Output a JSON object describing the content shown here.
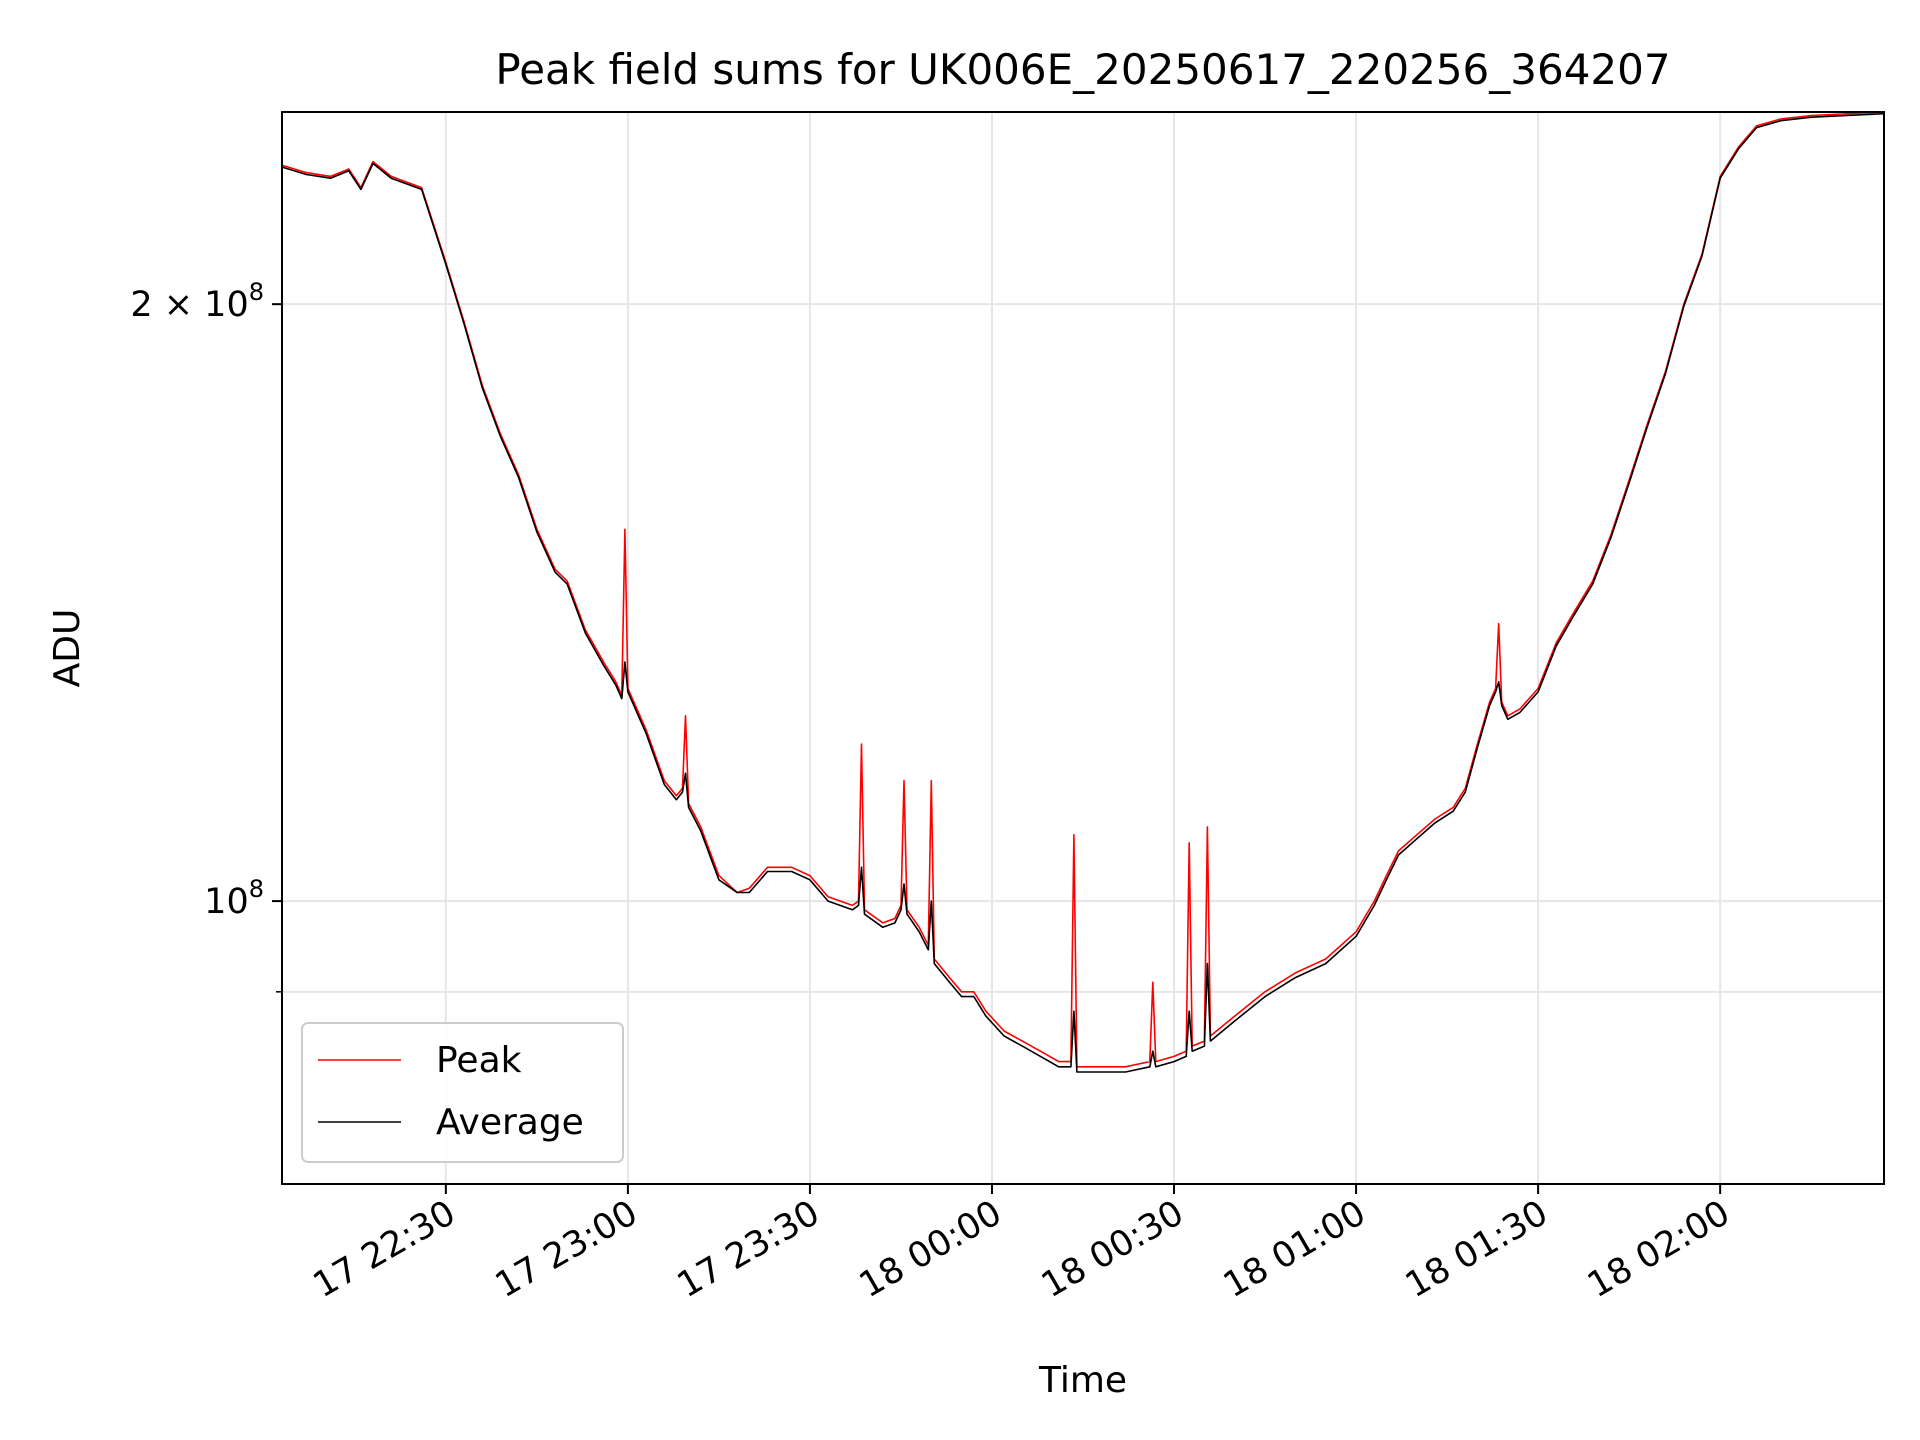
{
  "chart_data": {
    "type": "line",
    "title": "Peak field sums for UK006E_20250617_220256_364207",
    "xlabel": "Time",
    "ylabel": "ADU",
    "x_format": "%d %H:%M",
    "xlim": [
      "2025-06-17T22:03:00",
      "2025-06-18T02:27:00"
    ],
    "ylim": [
      72000000,
      250000000
    ],
    "yscale": "log",
    "grid": true,
    "legend_position": "lower-left",
    "x_ticks": [
      {
        "x": "2025-06-17T22:30:00",
        "label": "17 22:30"
      },
      {
        "x": "2025-06-17T23:00:00",
        "label": "17 23:00"
      },
      {
        "x": "2025-06-17T23:30:00",
        "label": "17 23:30"
      },
      {
        "x": "2025-06-18T00:00:00",
        "label": "18 00:00"
      },
      {
        "x": "2025-06-18T00:30:00",
        "label": "18 00:30"
      },
      {
        "x": "2025-06-18T01:00:00",
        "label": "18 01:00"
      },
      {
        "x": "2025-06-18T01:30:00",
        "label": "18 01:30"
      },
      {
        "x": "2025-06-18T02:00:00",
        "label": "18 02:00"
      }
    ],
    "y_ticks": [
      {
        "value": 200000000,
        "base": "2 × 10",
        "exp": "8"
      },
      {
        "value": 100000000,
        "base": "10",
        "exp": "8"
      }
    ],
    "y_minor_ticks": [
      90000000
    ],
    "series": [
      {
        "name": "Peak",
        "color": "#ff0000",
        "points": [
          [
            "2025-06-17T22:03:00",
            235000000
          ],
          [
            "2025-06-17T22:07:00",
            233000000
          ],
          [
            "2025-06-17T22:11:00",
            232000000
          ],
          [
            "2025-06-17T22:14:00",
            234000000
          ],
          [
            "2025-06-17T22:16:00",
            229000000
          ],
          [
            "2025-06-17T22:18:00",
            236000000
          ],
          [
            "2025-06-17T22:21:00",
            232000000
          ],
          [
            "2025-06-17T22:26:00",
            229000000
          ],
          [
            "2025-06-17T22:30:00",
            210000000
          ],
          [
            "2025-06-17T22:33:00",
            196000000
          ],
          [
            "2025-06-17T22:36:00",
            182000000
          ],
          [
            "2025-06-17T22:39:00",
            172000000
          ],
          [
            "2025-06-17T22:42:00",
            164000000
          ],
          [
            "2025-06-17T22:45:00",
            154000000
          ],
          [
            "2025-06-17T22:48:00",
            147000000
          ],
          [
            "2025-06-17T22:50:00",
            145000000
          ],
          [
            "2025-06-17T22:53:00",
            137000000
          ],
          [
            "2025-06-17T22:56:00",
            132000000
          ],
          [
            "2025-06-17T22:58:00",
            129000000
          ],
          [
            "2025-06-17T22:59:00",
            127000000
          ],
          [
            "2025-06-17T22:59:30",
            154000000
          ],
          [
            "2025-06-17T23:00:00",
            128000000
          ],
          [
            "2025-06-17T23:03:00",
            122000000
          ],
          [
            "2025-06-17T23:06:00",
            115000000
          ],
          [
            "2025-06-17T23:08:00",
            113000000
          ],
          [
            "2025-06-17T23:09:00",
            114000000
          ],
          [
            "2025-06-17T23:09:30",
            124000000
          ],
          [
            "2025-06-17T23:10:00",
            112000000
          ],
          [
            "2025-06-17T23:12:00",
            109000000
          ],
          [
            "2025-06-17T23:15:00",
            103000000
          ],
          [
            "2025-06-17T23:18:00",
            101000000
          ],
          [
            "2025-06-17T23:20:00",
            101500000
          ],
          [
            "2025-06-17T23:23:00",
            104000000
          ],
          [
            "2025-06-17T23:27:00",
            104000000
          ],
          [
            "2025-06-17T23:30:00",
            103000000
          ],
          [
            "2025-06-17T23:33:00",
            100500000
          ],
          [
            "2025-06-17T23:37:00",
            99500000
          ],
          [
            "2025-06-17T23:38:00",
            100000000
          ],
          [
            "2025-06-17T23:38:30",
            120000000
          ],
          [
            "2025-06-17T23:39:00",
            99000000
          ],
          [
            "2025-06-17T23:42:00",
            97500000
          ],
          [
            "2025-06-17T23:44:00",
            98000000
          ],
          [
            "2025-06-17T23:45:00",
            99500000
          ],
          [
            "2025-06-17T23:45:30",
            115000000
          ],
          [
            "2025-06-17T23:46:00",
            99000000
          ],
          [
            "2025-06-17T23:48:00",
            97000000
          ],
          [
            "2025-06-17T23:49:30",
            95000000
          ],
          [
            "2025-06-17T23:50:00",
            115000000
          ],
          [
            "2025-06-17T23:50:30",
            93500000
          ],
          [
            "2025-06-17T23:53:00",
            91500000
          ],
          [
            "2025-06-17T23:55:00",
            90000000
          ],
          [
            "2025-06-17T23:57:00",
            90000000
          ],
          [
            "2025-06-17T23:59:00",
            88000000
          ],
          [
            "2025-06-18T00:02:00",
            86000000
          ],
          [
            "2025-06-18T00:05:00",
            85000000
          ],
          [
            "2025-06-18T00:08:00",
            84000000
          ],
          [
            "2025-06-18T00:11:00",
            83000000
          ],
          [
            "2025-06-18T00:13:00",
            83000000
          ],
          [
            "2025-06-18T00:13:30",
            108000000
          ],
          [
            "2025-06-18T00:14:00",
            82500000
          ],
          [
            "2025-06-18T00:18:00",
            82500000
          ],
          [
            "2025-06-18T00:22:00",
            82500000
          ],
          [
            "2025-06-18T00:26:00",
            83000000
          ],
          [
            "2025-06-18T00:26:30",
            91000000
          ],
          [
            "2025-06-18T00:27:00",
            83000000
          ],
          [
            "2025-06-18T00:30:00",
            83500000
          ],
          [
            "2025-06-18T00:32:00",
            84000000
          ],
          [
            "2025-06-18T00:32:30",
            107000000
          ],
          [
            "2025-06-18T00:33:00",
            84500000
          ],
          [
            "2025-06-18T00:35:00",
            85000000
          ],
          [
            "2025-06-18T00:35:30",
            109000000
          ],
          [
            "2025-06-18T00:36:00",
            85500000
          ],
          [
            "2025-06-18T00:40:00",
            87500000
          ],
          [
            "2025-06-18T00:45:00",
            90000000
          ],
          [
            "2025-06-18T00:50:00",
            92000000
          ],
          [
            "2025-06-18T00:55:00",
            93500000
          ],
          [
            "2025-06-18T01:00:00",
            96500000
          ],
          [
            "2025-06-18T01:03:00",
            100000000
          ],
          [
            "2025-06-18T01:05:00",
            103000000
          ],
          [
            "2025-06-18T01:07:00",
            106000000
          ],
          [
            "2025-06-18T01:10:00",
            108000000
          ],
          [
            "2025-06-18T01:13:00",
            110000000
          ],
          [
            "2025-06-18T01:16:00",
            111500000
          ],
          [
            "2025-06-18T01:18:00",
            114000000
          ],
          [
            "2025-06-18T01:20:00",
            120000000
          ],
          [
            "2025-06-18T01:22:00",
            126000000
          ],
          [
            "2025-06-18T01:23:00",
            128000000
          ],
          [
            "2025-06-18T01:23:30",
            138000000
          ],
          [
            "2025-06-18T01:24:00",
            126000000
          ],
          [
            "2025-06-18T01:25:00",
            124000000
          ],
          [
            "2025-06-18T01:27:00",
            125000000
          ],
          [
            "2025-06-18T01:30:00",
            128000000
          ],
          [
            "2025-06-18T01:33:00",
            135000000
          ],
          [
            "2025-06-18T01:36:00",
            140000000
          ],
          [
            "2025-06-18T01:39:00",
            145000000
          ],
          [
            "2025-06-18T01:42:00",
            153000000
          ],
          [
            "2025-06-18T01:45:00",
            163000000
          ],
          [
            "2025-06-18T01:48:00",
            174000000
          ],
          [
            "2025-06-18T01:51:00",
            185000000
          ],
          [
            "2025-06-18T01:54:00",
            200000000
          ],
          [
            "2025-06-18T01:57:00",
            212000000
          ],
          [
            "2025-06-18T02:00:00",
            232000000
          ],
          [
            "2025-06-18T02:03:00",
            240000000
          ],
          [
            "2025-06-18T02:06:00",
            246000000
          ],
          [
            "2025-06-18T02:10:00",
            248000000
          ],
          [
            "2025-06-18T02:15:00",
            249000000
          ],
          [
            "2025-06-18T02:27:00",
            250000000
          ]
        ]
      },
      {
        "name": "Average",
        "color": "#000000",
        "points": [
          [
            "2025-06-17T22:03:00",
            234500000
          ],
          [
            "2025-06-17T22:07:00",
            232500000
          ],
          [
            "2025-06-17T22:11:00",
            231500000
          ],
          [
            "2025-06-17T22:14:00",
            233500000
          ],
          [
            "2025-06-17T22:16:00",
            228500000
          ],
          [
            "2025-06-17T22:18:00",
            235500000
          ],
          [
            "2025-06-17T22:21:00",
            231500000
          ],
          [
            "2025-06-17T22:26:00",
            228500000
          ],
          [
            "2025-06-17T22:30:00",
            209500000
          ],
          [
            "2025-06-17T22:33:00",
            195500000
          ],
          [
            "2025-06-17T22:36:00",
            181500000
          ],
          [
            "2025-06-17T22:39:00",
            171500000
          ],
          [
            "2025-06-17T22:42:00",
            163500000
          ],
          [
            "2025-06-17T22:45:00",
            153500000
          ],
          [
            "2025-06-17T22:48:00",
            146500000
          ],
          [
            "2025-06-17T22:50:00",
            144500000
          ],
          [
            "2025-06-17T22:53:00",
            136500000
          ],
          [
            "2025-06-17T22:56:00",
            131500000
          ],
          [
            "2025-06-17T22:58:00",
            128500000
          ],
          [
            "2025-06-17T22:59:00",
            126500000
          ],
          [
            "2025-06-17T22:59:30",
            132000000
          ],
          [
            "2025-06-17T23:00:00",
            127500000
          ],
          [
            "2025-06-17T23:03:00",
            121500000
          ],
          [
            "2025-06-17T23:06:00",
            114500000
          ],
          [
            "2025-06-17T23:08:00",
            112500000
          ],
          [
            "2025-06-17T23:09:00",
            113500000
          ],
          [
            "2025-06-17T23:09:30",
            116000000
          ],
          [
            "2025-06-17T23:10:00",
            111500000
          ],
          [
            "2025-06-17T23:12:00",
            108500000
          ],
          [
            "2025-06-17T23:15:00",
            102500000
          ],
          [
            "2025-06-17T23:18:00",
            101000000
          ],
          [
            "2025-06-17T23:20:00",
            101000000
          ],
          [
            "2025-06-17T23:23:00",
            103500000
          ],
          [
            "2025-06-17T23:27:00",
            103500000
          ],
          [
            "2025-06-17T23:30:00",
            102500000
          ],
          [
            "2025-06-17T23:33:00",
            100000000
          ],
          [
            "2025-06-17T23:37:00",
            99000000
          ],
          [
            "2025-06-17T23:38:00",
            99500000
          ],
          [
            "2025-06-17T23:38:30",
            104000000
          ],
          [
            "2025-06-17T23:39:00",
            98500000
          ],
          [
            "2025-06-17T23:42:00",
            97000000
          ],
          [
            "2025-06-17T23:44:00",
            97500000
          ],
          [
            "2025-06-17T23:45:00",
            99000000
          ],
          [
            "2025-06-17T23:45:30",
            102000000
          ],
          [
            "2025-06-17T23:46:00",
            98500000
          ],
          [
            "2025-06-17T23:48:00",
            96500000
          ],
          [
            "2025-06-17T23:49:30",
            94500000
          ],
          [
            "2025-06-17T23:50:00",
            100000000
          ],
          [
            "2025-06-17T23:50:30",
            93000000
          ],
          [
            "2025-06-17T23:53:00",
            91000000
          ],
          [
            "2025-06-17T23:55:00",
            89500000
          ],
          [
            "2025-06-17T23:57:00",
            89500000
          ],
          [
            "2025-06-17T23:59:00",
            87500000
          ],
          [
            "2025-06-18T00:02:00",
            85500000
          ],
          [
            "2025-06-18T00:05:00",
            84500000
          ],
          [
            "2025-06-18T00:08:00",
            83500000
          ],
          [
            "2025-06-18T00:11:00",
            82500000
          ],
          [
            "2025-06-18T00:13:00",
            82500000
          ],
          [
            "2025-06-18T00:13:30",
            88000000
          ],
          [
            "2025-06-18T00:14:00",
            82000000
          ],
          [
            "2025-06-18T00:18:00",
            82000000
          ],
          [
            "2025-06-18T00:22:00",
            82000000
          ],
          [
            "2025-06-18T00:26:00",
            82500000
          ],
          [
            "2025-06-18T00:26:30",
            84000000
          ],
          [
            "2025-06-18T00:27:00",
            82500000
          ],
          [
            "2025-06-18T00:30:00",
            83000000
          ],
          [
            "2025-06-18T00:32:00",
            83500000
          ],
          [
            "2025-06-18T00:32:30",
            88000000
          ],
          [
            "2025-06-18T00:33:00",
            84000000
          ],
          [
            "2025-06-18T00:35:00",
            84500000
          ],
          [
            "2025-06-18T00:35:30",
            93000000
          ],
          [
            "2025-06-18T00:36:00",
            85000000
          ],
          [
            "2025-06-18T00:40:00",
            87000000
          ],
          [
            "2025-06-18T00:45:00",
            89500000
          ],
          [
            "2025-06-18T00:50:00",
            91500000
          ],
          [
            "2025-06-18T00:55:00",
            93000000
          ],
          [
            "2025-06-18T01:00:00",
            96000000
          ],
          [
            "2025-06-18T01:03:00",
            99500000
          ],
          [
            "2025-06-18T01:05:00",
            102500000
          ],
          [
            "2025-06-18T01:07:00",
            105500000
          ],
          [
            "2025-06-18T01:10:00",
            107500000
          ],
          [
            "2025-06-18T01:13:00",
            109500000
          ],
          [
            "2025-06-18T01:16:00",
            111000000
          ],
          [
            "2025-06-18T01:18:00",
            113500000
          ],
          [
            "2025-06-18T01:20:00",
            119500000
          ],
          [
            "2025-06-18T01:22:00",
            125500000
          ],
          [
            "2025-06-18T01:23:00",
            127500000
          ],
          [
            "2025-06-18T01:23:30",
            129000000
          ],
          [
            "2025-06-18T01:24:00",
            125500000
          ],
          [
            "2025-06-18T01:25:00",
            123500000
          ],
          [
            "2025-06-18T01:27:00",
            124500000
          ],
          [
            "2025-06-18T01:30:00",
            127500000
          ],
          [
            "2025-06-18T01:33:00",
            134500000
          ],
          [
            "2025-06-18T01:36:00",
            139500000
          ],
          [
            "2025-06-18T01:39:00",
            144500000
          ],
          [
            "2025-06-18T01:42:00",
            152500000
          ],
          [
            "2025-06-18T01:45:00",
            162500000
          ],
          [
            "2025-06-18T01:48:00",
            173500000
          ],
          [
            "2025-06-18T01:51:00",
            184500000
          ],
          [
            "2025-06-18T01:54:00",
            199500000
          ],
          [
            "2025-06-18T01:57:00",
            211500000
          ],
          [
            "2025-06-18T02:00:00",
            231500000
          ],
          [
            "2025-06-18T02:03:00",
            239500000
          ],
          [
            "2025-06-18T02:06:00",
            245500000
          ],
          [
            "2025-06-18T02:10:00",
            247500000
          ],
          [
            "2025-06-18T02:15:00",
            248500000
          ],
          [
            "2025-06-18T02:27:00",
            249500000
          ]
        ]
      }
    ]
  }
}
